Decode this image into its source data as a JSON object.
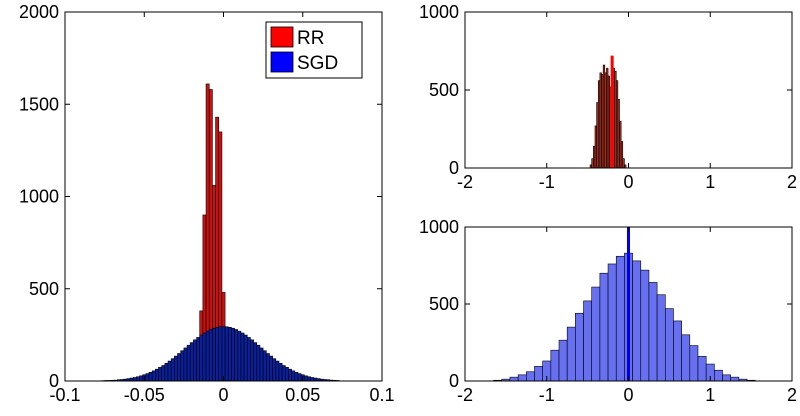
{
  "chart_data": [
    {
      "type": "histogram",
      "panel": "left",
      "xlim": [
        -0.1,
        0.1
      ],
      "ylim": [
        0,
        2000
      ],
      "xticks": [
        "-0.1",
        "-0.05",
        "0",
        "0.05",
        "0.1"
      ],
      "yticks": [
        "0",
        "500",
        "1000",
        "1500",
        "2000"
      ],
      "legend_position": "top-right",
      "legend": [
        {
          "label": "RR",
          "color": "#ff0000"
        },
        {
          "label": "SGD",
          "color": "#0000ff"
        }
      ],
      "series": [
        {
          "name": "RR",
          "color": "#cc1111",
          "bin_width": 0.002,
          "bins": [
            {
              "x": -0.016,
              "y": 210
            },
            {
              "x": -0.014,
              "y": 380
            },
            {
              "x": -0.012,
              "y": 900
            },
            {
              "x": -0.01,
              "y": 1610
            },
            {
              "x": -0.008,
              "y": 1580
            },
            {
              "x": -0.006,
              "y": 1060
            },
            {
              "x": -0.004,
              "y": 1430
            },
            {
              "x": -0.002,
              "y": 1350
            },
            {
              "x": 0.0,
              "y": 480
            },
            {
              "x": 0.002,
              "y": 200
            }
          ]
        },
        {
          "name": "SGD",
          "color": "#0a1f9a",
          "bin_width": 0.002,
          "mean": 0.0,
          "std": 0.024,
          "peak": 295,
          "range": [
            -0.076,
            0.072
          ]
        }
      ]
    },
    {
      "type": "histogram",
      "panel": "top-right",
      "xlim": [
        -2,
        2
      ],
      "ylim": [
        0,
        1000
      ],
      "xticks": [
        "-2",
        "-1",
        "0",
        "1",
        "2"
      ],
      "yticks": [
        "0",
        "500",
        "1000"
      ],
      "series": [
        {
          "name": "RR",
          "color": "#b03020",
          "bin_width": 0.02,
          "bins": [
            {
              "x": -0.46,
              "y": 20
            },
            {
              "x": -0.44,
              "y": 60
            },
            {
              "x": -0.42,
              "y": 140
            },
            {
              "x": -0.4,
              "y": 270
            },
            {
              "x": -0.38,
              "y": 420
            },
            {
              "x": -0.36,
              "y": 560
            },
            {
              "x": -0.34,
              "y": 610
            },
            {
              "x": -0.32,
              "y": 600
            },
            {
              "x": -0.3,
              "y": 660
            },
            {
              "x": -0.28,
              "y": 610
            },
            {
              "x": -0.26,
              "y": 640
            },
            {
              "x": -0.24,
              "y": 590
            },
            {
              "x": -0.22,
              "y": 520
            },
            {
              "x": -0.2,
              "y": 560
            },
            {
              "x": -0.18,
              "y": 640
            },
            {
              "x": -0.16,
              "y": 620
            },
            {
              "x": -0.14,
              "y": 560
            },
            {
              "x": -0.12,
              "y": 440
            },
            {
              "x": -0.1,
              "y": 300
            },
            {
              "x": -0.08,
              "y": 170
            },
            {
              "x": -0.06,
              "y": 60
            },
            {
              "x": -0.04,
              "y": 20
            }
          ],
          "marker": {
            "x": -0.2,
            "y": 720,
            "color": "#ff0000"
          }
        }
      ]
    },
    {
      "type": "histogram",
      "panel": "bottom-right",
      "xlim": [
        -2,
        2
      ],
      "ylim": [
        0,
        1000
      ],
      "xticks": [
        "-2",
        "-1",
        "0",
        "1",
        "2"
      ],
      "yticks": [
        "0",
        "500",
        "1000"
      ],
      "series": [
        {
          "name": "SGD",
          "color": "#6670f0",
          "bin_width": 0.1,
          "bins": [
            {
              "x": -1.6,
              "y": 5
            },
            {
              "x": -1.5,
              "y": 12
            },
            {
              "x": -1.4,
              "y": 25
            },
            {
              "x": -1.3,
              "y": 40
            },
            {
              "x": -1.2,
              "y": 60
            },
            {
              "x": -1.1,
              "y": 95
            },
            {
              "x": -1.0,
              "y": 130
            },
            {
              "x": -0.9,
              "y": 200
            },
            {
              "x": -0.8,
              "y": 265
            },
            {
              "x": -0.7,
              "y": 350
            },
            {
              "x": -0.6,
              "y": 440
            },
            {
              "x": -0.5,
              "y": 520
            },
            {
              "x": -0.4,
              "y": 610
            },
            {
              "x": -0.3,
              "y": 700
            },
            {
              "x": -0.2,
              "y": 760
            },
            {
              "x": -0.1,
              "y": 810
            },
            {
              "x": 0.0,
              "y": 830
            },
            {
              "x": 0.1,
              "y": 780
            },
            {
              "x": 0.2,
              "y": 720
            },
            {
              "x": 0.3,
              "y": 640
            },
            {
              "x": 0.4,
              "y": 560
            },
            {
              "x": 0.5,
              "y": 470
            },
            {
              "x": 0.6,
              "y": 390
            },
            {
              "x": 0.7,
              "y": 300
            },
            {
              "x": 0.8,
              "y": 230
            },
            {
              "x": 0.9,
              "y": 160
            },
            {
              "x": 1.0,
              "y": 110
            },
            {
              "x": 1.1,
              "y": 70
            },
            {
              "x": 1.2,
              "y": 40
            },
            {
              "x": 1.3,
              "y": 25
            },
            {
              "x": 1.4,
              "y": 12
            },
            {
              "x": 1.5,
              "y": 5
            }
          ],
          "marker": {
            "x": 0.0,
            "y": 1000,
            "color": "#0000ee"
          }
        }
      ]
    }
  ]
}
